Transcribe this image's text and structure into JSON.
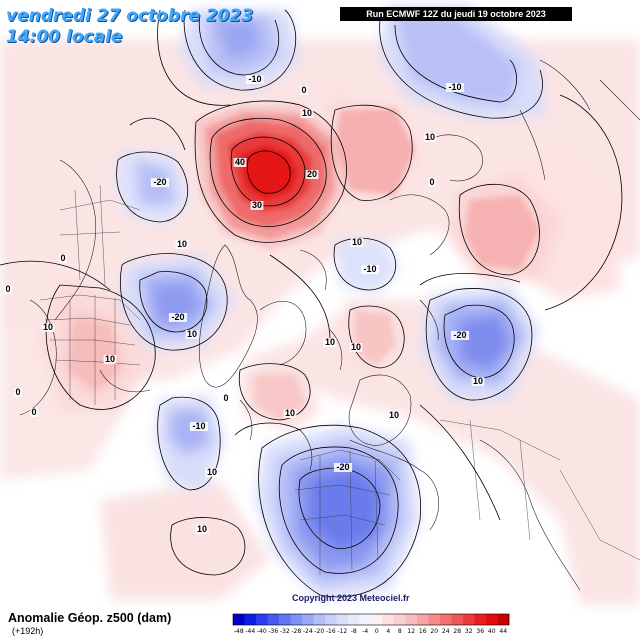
{
  "header": {
    "date_line": "vendredi 27 octobre 2023",
    "time_line": "14:00 locale",
    "run_label": "Run ECMWF 12Z du jeudi 19 octobre 2023"
  },
  "footer": {
    "title": "Anomalie Géop. z500 (dam)",
    "lead": "(+192h)",
    "copyright": "Copyright 2023 Meteociel.fr"
  },
  "contour_labels": [
    {
      "text": "-10"
    },
    {
      "text": "0"
    },
    {
      "text": "10"
    },
    {
      "text": "-10"
    },
    {
      "text": "10"
    },
    {
      "text": "40"
    },
    {
      "text": "20"
    },
    {
      "text": "30"
    },
    {
      "text": "-20"
    },
    {
      "text": "10"
    },
    {
      "text": "0"
    },
    {
      "text": "-10"
    },
    {
      "text": "10"
    },
    {
      "text": "-20"
    },
    {
      "text": "10"
    },
    {
      "text": "0"
    },
    {
      "text": "10"
    },
    {
      "text": "10"
    },
    {
      "text": "-20"
    },
    {
      "text": "10"
    },
    {
      "text": "10"
    },
    {
      "text": "10"
    },
    {
      "text": "-10"
    },
    {
      "text": "10"
    },
    {
      "text": "-20"
    },
    {
      "text": "10"
    },
    {
      "text": "0"
    },
    {
      "text": "0"
    },
    {
      "text": "0"
    },
    {
      "text": "0"
    },
    {
      "text": "10"
    },
    {
      "text": "10"
    }
  ],
  "color_scale": {
    "ticks": [
      "-48",
      "-44",
      "-40",
      "-36",
      "-32",
      "-28",
      "-24",
      "-20",
      "-16",
      "-12",
      "-8",
      "-4",
      "0",
      "4",
      "8",
      "12",
      "16",
      "20",
      "24",
      "28",
      "32",
      "36",
      "40",
      "44"
    ],
    "colors": [
      "#0000c8",
      "#0f1ee6",
      "#2a3cf0",
      "#4658f0",
      "#6274f2",
      "#7e90f4",
      "#98a8f6",
      "#b2bff8",
      "#c6d0fa",
      "#d8defc",
      "#e6eafd",
      "#f2f4fe",
      "#fdf1f1",
      "#fce0e0",
      "#fad0d0",
      "#f8bcbc",
      "#f6a4a4",
      "#f48c8c",
      "#f27070",
      "#f05656",
      "#ee3a3a",
      "#ea2020",
      "#e40c0c",
      "#c80000"
    ]
  }
}
